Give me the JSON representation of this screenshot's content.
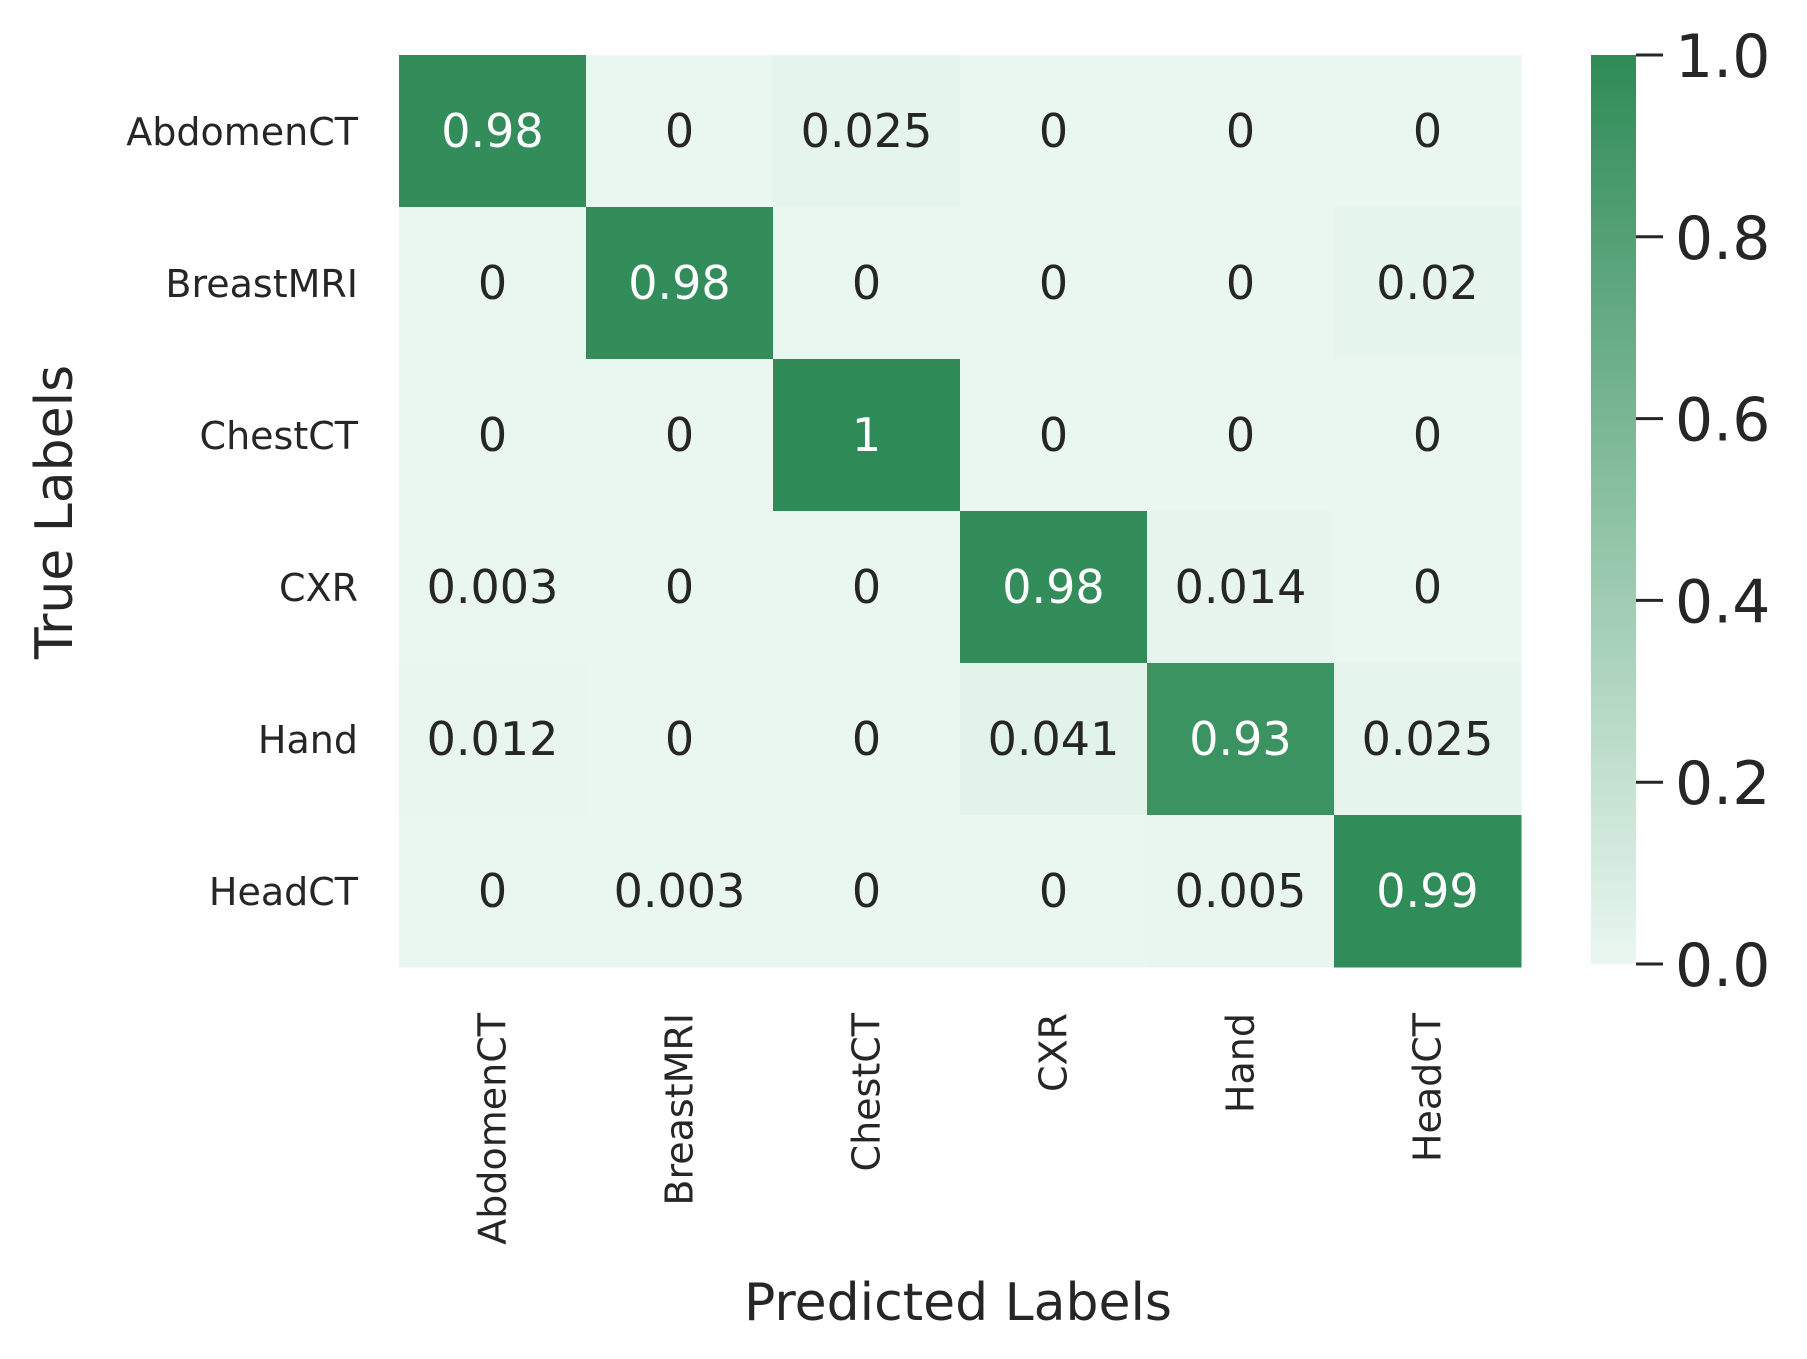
{
  "chart_data": {
    "type": "heatmap",
    "xlabel": "Predicted Labels",
    "ylabel": "True Labels",
    "x_categories": [
      "AbdomenCT",
      "BreastMRI",
      "ChestCT",
      "CXR",
      "Hand",
      "HeadCT"
    ],
    "y_categories": [
      "AbdomenCT",
      "BreastMRI",
      "ChestCT",
      "CXR",
      "Hand",
      "HeadCT"
    ],
    "matrix": [
      [
        "0.98",
        "0",
        "0.025",
        "0",
        "0",
        "0"
      ],
      [
        "0",
        "0.98",
        "0",
        "0",
        "0",
        "0.02"
      ],
      [
        "0",
        "0",
        "1",
        "0",
        "0",
        "0"
      ],
      [
        "0.003",
        "0",
        "0",
        "0.98",
        "0.014",
        "0"
      ],
      [
        "0.012",
        "0",
        "0",
        "0.041",
        "0.93",
        "0.025"
      ],
      [
        "0",
        "0.003",
        "0",
        "0",
        "0.005",
        "0.99"
      ]
    ],
    "colorbar": {
      "range": [
        0,
        1
      ],
      "ticks": [
        "0.0",
        "0.2",
        "0.4",
        "0.6",
        "0.8",
        "1.0"
      ]
    },
    "colors": {
      "low": "#eaf7f0",
      "high": "#2e8b57",
      "text_light": "#ffffff",
      "text_dark": "#262626"
    }
  }
}
